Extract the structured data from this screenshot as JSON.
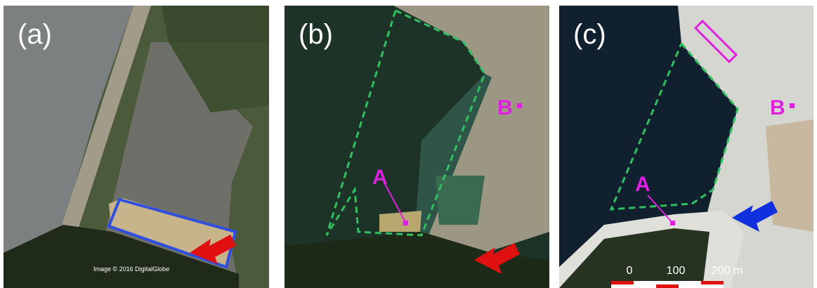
{
  "panels": [
    {
      "label": "(a)",
      "credit": "Image © 2016 DigitalGlobe"
    },
    {
      "label": "(b)",
      "markers": [
        "A",
        "B"
      ]
    },
    {
      "label": "(c)",
      "markers": [
        "A",
        "B"
      ],
      "scale": [
        "0",
        "100",
        "200 m"
      ]
    }
  ]
}
